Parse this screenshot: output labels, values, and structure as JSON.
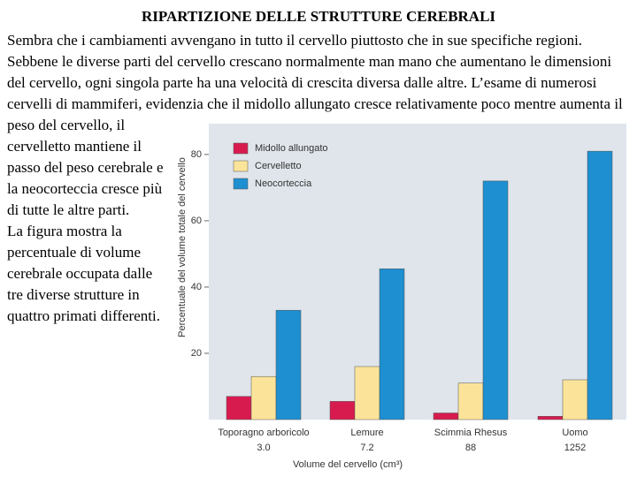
{
  "title": "RIPARTIZIONE DELLE STRUTTURE CEREBRALI",
  "paragraphs": [
    "Sembra che i cambiamenti avvengano in tutto il cervello piuttosto che in sue specifiche regioni. Sebbene le diverse parti del cervello crescano normalmente man mano che aumentano le dimensioni del cervello, ogni singola parte ha una velocità di crescita diversa dalle altre. L’esame di numerosi cervelli di mammiferi, evidenzia che il midollo allungato cresce relativamente poco mentre aumenta il peso del cervello, il cervelletto mantiene il passo del peso cerebrale e la neocorteccia cresce più di tutte le altre parti.",
    "La figura mostra la percentuale di volume cerebrale occupata dalle tre diverse strutture in quattro primati differenti."
  ],
  "chart_data": {
    "type": "bar",
    "ylabel": "Percentuale del volume totale del cervello",
    "xlabel": "Volume del cervello (cm³)",
    "categories": [
      "Toporagno arboricolo",
      "Lemure",
      "Scimmia Rhesus",
      "Uomo"
    ],
    "volumes": [
      "3.0",
      "7.2",
      "88",
      "1252"
    ],
    "series": [
      {
        "name": "Midollo allungato",
        "color": "#d81b4f",
        "values": [
          7,
          5.5,
          2,
          1
        ]
      },
      {
        "name": "Cervelletto",
        "color": "#fbe49a",
        "values": [
          13,
          16,
          11,
          12
        ]
      },
      {
        "name": "Neocorteccia",
        "color": "#1e8fd0",
        "values": [
          33,
          45.5,
          72,
          81
        ]
      }
    ],
    "ylim": [
      0,
      89.3
    ],
    "yticks": [
      20,
      40,
      60,
      80
    ],
    "legend": "upper left"
  }
}
